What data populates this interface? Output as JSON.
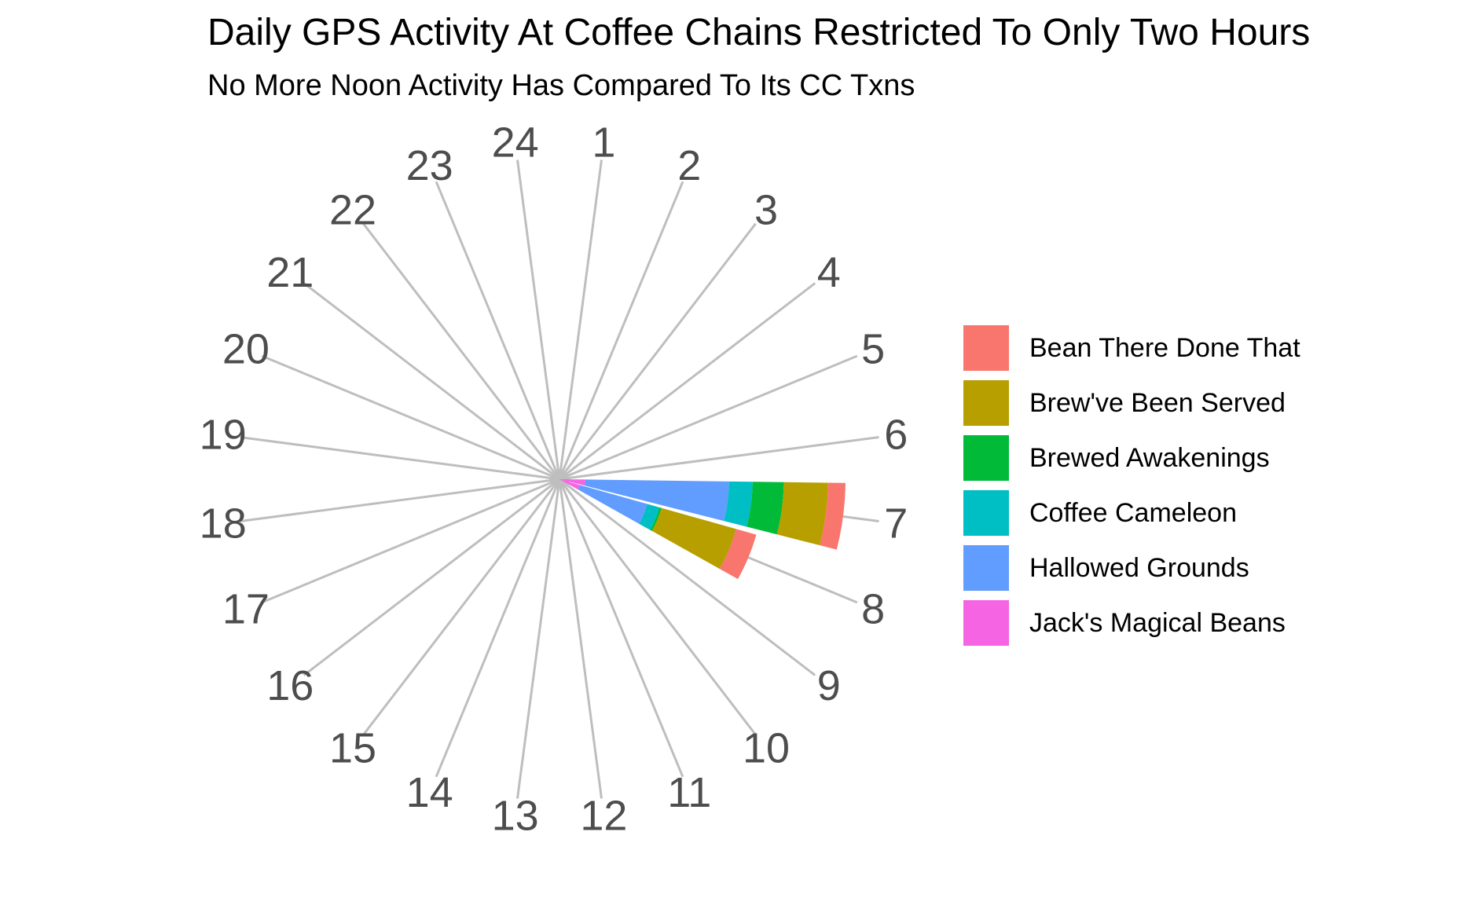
{
  "chart_data": {
    "type": "bar",
    "coord": "polar",
    "stacked": true,
    "title": "Daily GPS Activity At Coffee Chains Restricted To Only Two Hours",
    "subtitle": "No More Noon Activity Has Compared To Its CC Txns",
    "categories": [
      "1",
      "2",
      "3",
      "4",
      "5",
      "6",
      "7",
      "8",
      "9",
      "10",
      "11",
      "12",
      "13",
      "14",
      "15",
      "16",
      "17",
      "18",
      "19",
      "20",
      "21",
      "22",
      "23",
      "24"
    ],
    "series": [
      {
        "name": "Jack's Magical Beans",
        "color": "#F564E3",
        "values": [
          0,
          0,
          0,
          0,
          0,
          0,
          3,
          2,
          0,
          0,
          0,
          0,
          0,
          0,
          0,
          0,
          0,
          0,
          0,
          0,
          0,
          0,
          0,
          0
        ]
      },
      {
        "name": "Hallowed Grounds",
        "color": "#619CFF",
        "values": [
          0,
          0,
          0,
          0,
          0,
          0,
          125,
          35,
          0,
          0,
          0,
          0,
          0,
          0,
          0,
          0,
          0,
          0,
          0,
          0,
          0,
          0,
          0,
          0
        ]
      },
      {
        "name": "Coffee Cameleon",
        "color": "#00BFC4",
        "values": [
          0,
          0,
          0,
          0,
          0,
          0,
          38,
          11,
          0,
          0,
          0,
          0,
          0,
          0,
          0,
          0,
          0,
          0,
          0,
          0,
          0,
          0,
          0,
          0
        ]
      },
      {
        "name": "Brewed Awakenings",
        "color": "#00BA38",
        "values": [
          0,
          0,
          0,
          0,
          0,
          0,
          58,
          2,
          0,
          0,
          0,
          0,
          0,
          0,
          0,
          0,
          0,
          0,
          0,
          0,
          0,
          0,
          0,
          0
        ]
      },
      {
        "name": "Brew've Been Served",
        "color": "#B79F00",
        "values": [
          0,
          0,
          0,
          0,
          0,
          0,
          97,
          100,
          0,
          0,
          0,
          0,
          0,
          0,
          0,
          0,
          0,
          0,
          0,
          0,
          0,
          0,
          0,
          0
        ]
      },
      {
        "name": "Bean There Done That",
        "color": "#F8766D",
        "values": [
          0,
          0,
          0,
          0,
          0,
          0,
          43,
          36,
          0,
          0,
          0,
          0,
          0,
          0,
          0,
          0,
          0,
          0,
          0,
          0,
          0,
          0,
          0,
          0
        ]
      }
    ],
    "legend_position": "right",
    "grid": true
  }
}
